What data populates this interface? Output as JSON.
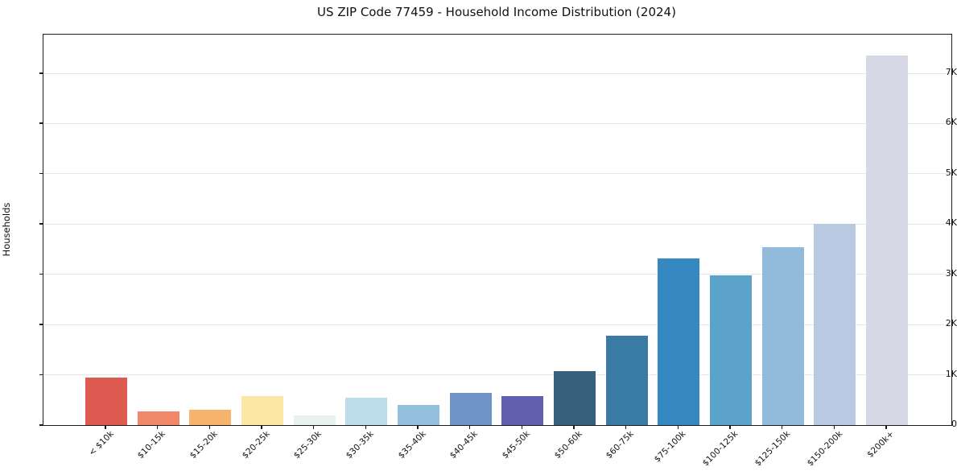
{
  "title": "US ZIP Code 77459 - Household Income Distribution (2024)",
  "chart_data": {
    "type": "bar",
    "title": "US ZIP Code 77459 - Household Income Distribution (2024)",
    "xlabel": "",
    "ylabel": "Households",
    "categories": [
      "< $10k",
      "$10-15k",
      "$15-20k",
      "$20-25k",
      "$25-30k",
      "$30-35k",
      "$35-40k",
      "$40-45k",
      "$45-50k",
      "$50-60k",
      "$60-75k",
      "$75-100k",
      "$100-125k",
      "$125-150k",
      "$150-200k",
      "$200k+"
    ],
    "values": [
      950,
      280,
      300,
      580,
      185,
      540,
      400,
      635,
      575,
      1080,
      1780,
      3320,
      2985,
      3540,
      4010,
      7350
    ],
    "bar_colors": [
      "#dc5a50",
      "#f2886a",
      "#f7b36b",
      "#fce8a4",
      "#e7f2f1",
      "#bcdcea",
      "#92bfdc",
      "#7093c8",
      "#6060ae",
      "#36607b",
      "#3a7ba4",
      "#3689c0",
      "#5ba3c9",
      "#92badb",
      "#b9c9e1",
      "#d7d8e6"
    ],
    "ytick_values": [
      0,
      1000,
      2000,
      3000,
      4000,
      5000,
      6000,
      7000
    ],
    "ytick_labels": [
      "0",
      "1K",
      "2K",
      "3K",
      "4K",
      "5K",
      "6K",
      "7K"
    ],
    "ylim": [
      0,
      7770
    ],
    "grid": "horizontal",
    "gridline_color": "#e8e8e8",
    "legend": "none",
    "background": "#ffffff"
  }
}
